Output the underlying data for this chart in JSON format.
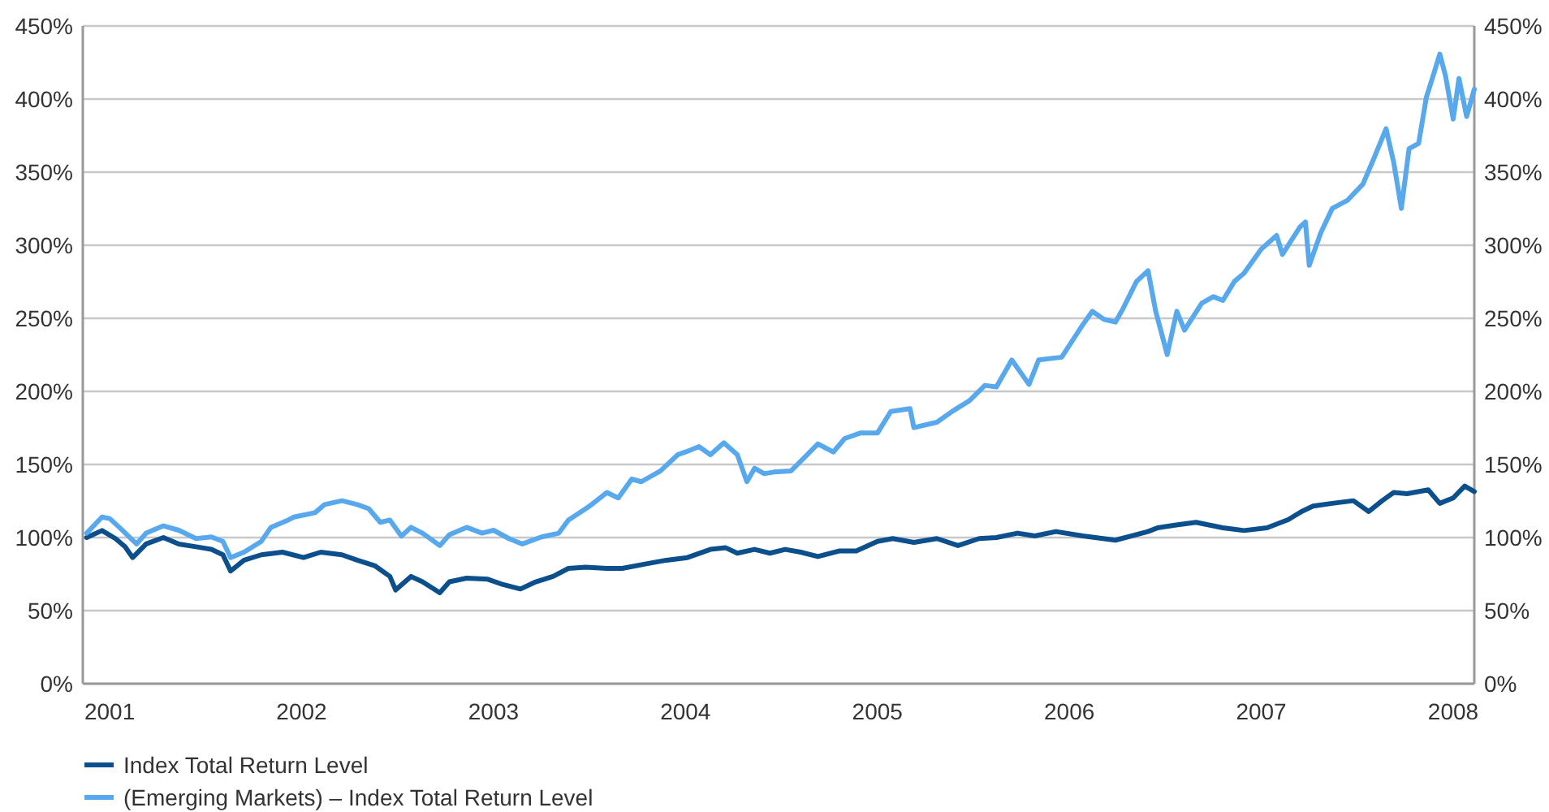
{
  "chart_data": {
    "type": "line",
    "xlim": [
      2000.86,
      2008.11
    ],
    "xticks": [
      2001,
      2002,
      2003,
      2004,
      2005,
      2006,
      2007,
      2008
    ],
    "ylim": [
      0,
      450
    ],
    "yticks": [
      {
        "value": 0,
        "label": "0%"
      },
      {
        "value": 50,
        "label": "50%"
      },
      {
        "value": 100,
        "label": "100%"
      },
      {
        "value": 150,
        "label": "150%"
      },
      {
        "value": 200,
        "label": "200%"
      },
      {
        "value": 250,
        "label": "250%"
      },
      {
        "value": 300,
        "label": "300%"
      },
      {
        "value": 350,
        "label": "350%"
      },
      {
        "value": 400,
        "label": "400%"
      },
      {
        "value": 450,
        "label": "450%"
      }
    ],
    "y2lim": [
      0,
      450
    ],
    "y2ticks": [
      {
        "value": 0,
        "label": "0%"
      },
      {
        "value": 50,
        "label": "50%"
      },
      {
        "value": 100,
        "label": "100%"
      },
      {
        "value": 150,
        "label": "150%"
      },
      {
        "value": 200,
        "label": "200%"
      },
      {
        "value": 250,
        "label": "250%"
      },
      {
        "value": 300,
        "label": "300%"
      },
      {
        "value": 350,
        "label": "350%"
      },
      {
        "value": 400,
        "label": "400%"
      },
      {
        "value": 450,
        "label": "450%"
      }
    ],
    "grid": "y",
    "legend": "bottom left",
    "line_style": "solid",
    "marker": "none",
    "series": [
      {
        "name": "Index Total Return Level",
        "color": "#0b4f8c",
        "x": [
          2000.88,
          2000.96,
          2001.03,
          2001.08,
          2001.12,
          2001.19,
          2001.28,
          2001.36,
          2001.45,
          2001.53,
          2001.59,
          2001.63,
          2001.7,
          2001.79,
          2001.9,
          2002.01,
          2002.1,
          2002.21,
          2002.29,
          2002.38,
          2002.46,
          2002.49,
          2002.57,
          2002.63,
          2002.72,
          2002.77,
          2002.86,
          2002.97,
          2003.05,
          2003.14,
          2003.22,
          2003.31,
          2003.39,
          2003.48,
          2003.59,
          2003.67,
          2003.79,
          2003.9,
          2004.01,
          2004.13,
          2004.21,
          2004.27,
          2004.36,
          2004.44,
          2004.52,
          2004.6,
          2004.69,
          2004.8,
          2004.89,
          2005.0,
          2005.08,
          2005.19,
          2005.31,
          2005.42,
          2005.53,
          2005.62,
          2005.73,
          2005.82,
          2005.93,
          2006.07,
          2006.24,
          2006.41,
          2006.46,
          2006.55,
          2006.66,
          2006.8,
          2006.91,
          2007.03,
          2007.14,
          2007.21,
          2007.27,
          2007.37,
          2007.48,
          2007.56,
          2007.63,
          2007.69,
          2007.76,
          2007.87,
          2007.93,
          2008.0,
          2008.06,
          2008.11
        ],
        "values": [
          100,
          104.8,
          99.3,
          93.7,
          86.3,
          95.6,
          100,
          95.6,
          93.7,
          91.9,
          88.2,
          77.1,
          84.5,
          88.2,
          90,
          86.3,
          90,
          88.2,
          84.5,
          80.8,
          73.4,
          64.1,
          73.4,
          69.7,
          62.2,
          69.7,
          72.2,
          71.5,
          67.8,
          64.8,
          69.7,
          73.4,
          78.9,
          79.7,
          78.9,
          78.9,
          81.9,
          84.5,
          86.3,
          91.9,
          93,
          89.3,
          91.9,
          89.3,
          91.9,
          90,
          87,
          90.8,
          90.8,
          97.4,
          99.3,
          96.7,
          99.3,
          94.5,
          99.3,
          100,
          103,
          101.1,
          104.1,
          101.1,
          98.2,
          104.1,
          106.7,
          108.5,
          110.4,
          106.7,
          104.8,
          106.7,
          112.2,
          117.8,
          121.5,
          123.4,
          125.2,
          117.8,
          125.2,
          130.8,
          130,
          132.6,
          123.4,
          127.1,
          135.2,
          131.5
        ]
      },
      {
        "name": "(Emerging Markets) – Index Total Return Level",
        "color": "#58a8ee",
        "x": [
          2000.88,
          2000.96,
          2001.0,
          2001.05,
          2001.14,
          2001.19,
          2001.28,
          2001.36,
          2001.45,
          2001.53,
          2001.59,
          2001.63,
          2001.7,
          2001.79,
          2001.84,
          2001.93,
          2001.96,
          2002.07,
          2002.12,
          2002.21,
          2002.29,
          2002.35,
          2002.41,
          2002.46,
          2002.52,
          2002.57,
          2002.63,
          2002.72,
          2002.77,
          2002.86,
          2002.94,
          2003.0,
          2003.08,
          2003.15,
          2003.25,
          2003.34,
          2003.39,
          2003.48,
          2003.5,
          2003.59,
          2003.65,
          2003.72,
          2003.77,
          2003.87,
          2003.96,
          2004.0,
          2004.07,
          2004.13,
          2004.2,
          2004.27,
          2004.32,
          2004.36,
          2004.41,
          2004.46,
          2004.55,
          2004.62,
          2004.69,
          2004.77,
          2004.83,
          2004.91,
          2005.0,
          2005.07,
          2005.17,
          2005.19,
          2005.31,
          2005.39,
          2005.48,
          2005.56,
          2005.62,
          2005.7,
          2005.79,
          2005.84,
          2005.96,
          2006.07,
          2006.12,
          2006.18,
          2006.24,
          2006.28,
          2006.35,
          2006.41,
          2006.45,
          2006.51,
          2006.56,
          2006.6,
          2006.69,
          2006.75,
          2006.8,
          2006.86,
          2006.91,
          2007.0,
          2007.08,
          2007.11,
          2007.2,
          2007.23,
          2007.25,
          2007.31,
          2007.37,
          2007.45,
          2007.53,
          2007.59,
          2007.65,
          2007.69,
          2007.73,
          2007.77,
          2007.82,
          2007.86,
          2007.9,
          2007.93,
          2007.96,
          2008.0,
          2008.03,
          2008.07,
          2008.11
        ],
        "values": [
          103,
          114,
          113,
          107,
          95.6,
          103,
          108,
          105,
          99.3,
          100.4,
          97.4,
          86.3,
          90,
          97.4,
          107,
          112,
          114,
          117,
          122.6,
          125.2,
          122.6,
          119.7,
          110.4,
          112,
          101,
          107,
          103,
          94.5,
          101.9,
          107,
          103,
          105,
          99.3,
          95.6,
          100.4,
          103,
          112,
          119.7,
          121.5,
          130.8,
          127.1,
          140,
          138.2,
          145.6,
          156.7,
          158.5,
          162.2,
          156.7,
          164.8,
          156.7,
          138.2,
          147.4,
          143.7,
          144.8,
          145.6,
          154.8,
          164.1,
          158.5,
          167.8,
          171.5,
          171.5,
          186.3,
          188.2,
          175.2,
          178.9,
          186.3,
          193.7,
          204.1,
          203,
          221.5,
          204.8,
          221.5,
          223.4,
          245.6,
          254.8,
          249.3,
          247.4,
          256.7,
          275.2,
          282.6,
          254.8,
          225.2,
          254.8,
          241.9,
          260.4,
          264.8,
          262.2,
          275.2,
          280.8,
          297.4,
          306.7,
          293.7,
          312.2,
          315.9,
          286.3,
          308.5,
          325.2,
          330.8,
          341.9,
          360.4,
          379.7,
          356.7,
          325.2,
          366,
          369.7,
          401.1,
          417.8,
          430.8,
          415.9,
          386.3,
          414.1,
          388.1,
          406.7
        ]
      }
    ]
  }
}
